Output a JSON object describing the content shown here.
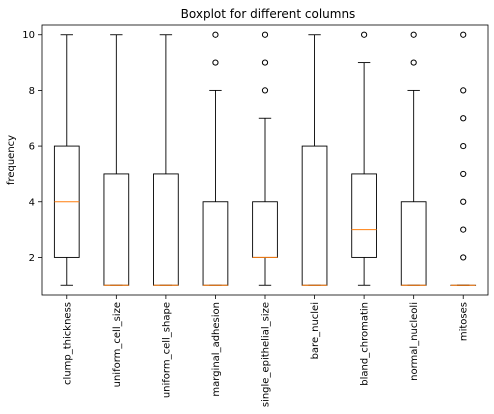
{
  "chart_data": {
    "type": "boxplot",
    "title": "Boxplot for different columns",
    "xlabel": "",
    "ylabel": "frequency",
    "ylim": [
      0.65,
      10.35
    ],
    "yticks": [
      2,
      4,
      6,
      8,
      10
    ],
    "grid": false,
    "colors": {
      "box": "#000000",
      "median": "#ff7f0e",
      "flier": "#000000"
    },
    "categories": [
      "clump_thickness",
      "uniform_cell_size",
      "uniform_cell_shape",
      "marginal_adhesion",
      "single_epithelial_size",
      "bare_nuclei",
      "bland_chromatin",
      "normal_nucleoli",
      "mitoses"
    ],
    "boxes": [
      {
        "whislo": 1,
        "q1": 2,
        "med": 4,
        "q3": 6,
        "whishi": 10,
        "fliers": []
      },
      {
        "whislo": 1,
        "q1": 1,
        "med": 1,
        "q3": 5,
        "whishi": 10,
        "fliers": []
      },
      {
        "whislo": 1,
        "q1": 1,
        "med": 1,
        "q3": 5,
        "whishi": 10,
        "fliers": []
      },
      {
        "whislo": 1,
        "q1": 1,
        "med": 1,
        "q3": 4,
        "whishi": 8,
        "fliers": [
          9,
          10
        ]
      },
      {
        "whislo": 1,
        "q1": 2,
        "med": 2,
        "q3": 4,
        "whishi": 7,
        "fliers": [
          8,
          9,
          10
        ]
      },
      {
        "whislo": 1,
        "q1": 1,
        "med": 1,
        "q3": 6,
        "whishi": 10,
        "fliers": []
      },
      {
        "whislo": 1,
        "q1": 2,
        "med": 3,
        "q3": 5,
        "whishi": 9,
        "fliers": [
          10
        ]
      },
      {
        "whislo": 1,
        "q1": 1,
        "med": 1,
        "q3": 4,
        "whishi": 8,
        "fliers": [
          9,
          10
        ]
      },
      {
        "whislo": 1,
        "q1": 1,
        "med": 1,
        "q3": 1,
        "whishi": 1,
        "fliers": [
          2,
          3,
          4,
          5,
          6,
          7,
          8,
          10
        ]
      }
    ]
  }
}
